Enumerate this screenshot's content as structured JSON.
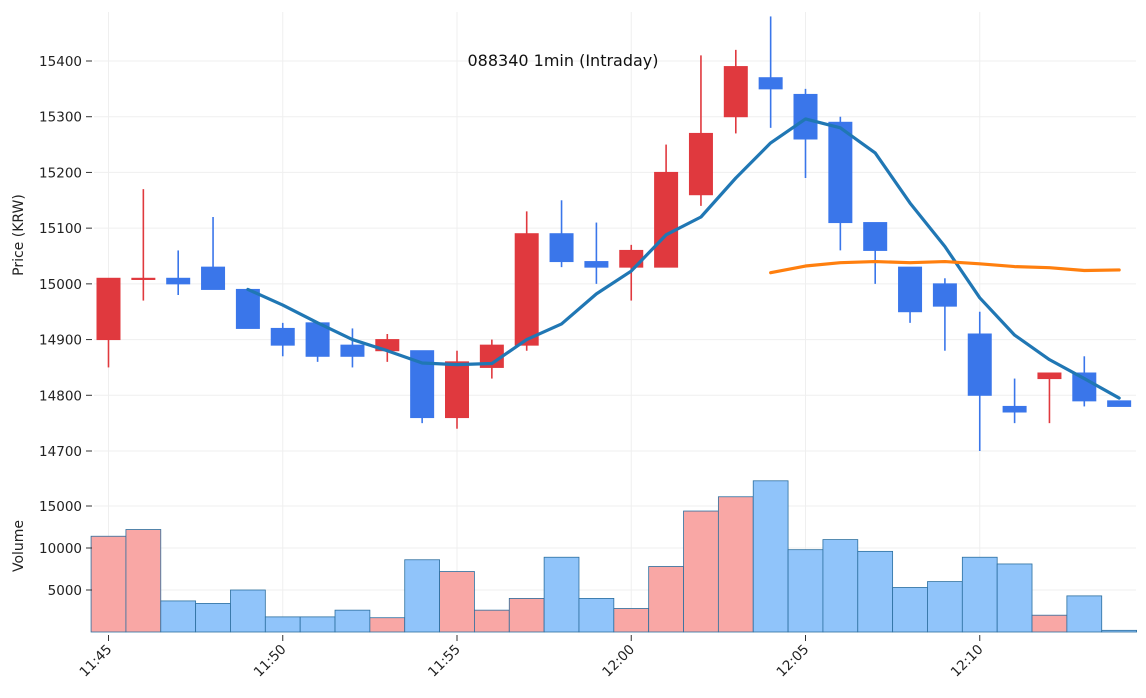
{
  "chart_data": {
    "type": "candlestick",
    "title": "088340 1min (Intraday)",
    "price_axis": {
      "label": "Price (KRW)",
      "ylim": [
        14680,
        15480
      ],
      "ticks": [
        14700,
        14800,
        14900,
        15000,
        15100,
        15200,
        15300,
        15400
      ],
      "tick_labels": [
        "14700",
        "14800",
        "14900",
        "15000",
        "15100",
        "15200",
        "15300",
        "15400"
      ]
    },
    "volume_axis": {
      "label": "Volume",
      "ylim": [
        0,
        18000
      ],
      "ticks": [
        5000,
        10000,
        15000
      ],
      "tick_labels": [
        "5000",
        "10000",
        "15000"
      ]
    },
    "x_axis": {
      "tick_minutes": [
        0,
        5,
        10,
        15,
        20,
        25
      ],
      "tick_labels": [
        "11:45",
        "11:50",
        "11:55",
        "12:00",
        "12:05",
        "12:10"
      ]
    },
    "colors": {
      "up_candle": "#e0393e",
      "down_candle": "#3a76ea",
      "up_volume": "#f9a7a5",
      "down_volume": "#90c4fa",
      "volume_edge": "#2c6f9f",
      "ma_short": "#2077b4",
      "ma_long": "#ff7f0e",
      "grid": "#efefef"
    },
    "candles": [
      {
        "time": "11:45",
        "open": 14900,
        "high": 15010,
        "low": 14850,
        "close": 15010,
        "volume": 11400
      },
      {
        "time": "11:46",
        "open": 15010,
        "high": 15170,
        "low": 14970,
        "close": 15010,
        "volume": 12200
      },
      {
        "time": "11:47",
        "open": 15010,
        "high": 15060,
        "low": 14980,
        "close": 15000,
        "volume": 3700
      },
      {
        "time": "11:48",
        "open": 15030,
        "high": 15120,
        "low": 14990,
        "close": 14990,
        "volume": 3400
      },
      {
        "time": "11:49",
        "open": 14990,
        "high": 14990,
        "low": 14920,
        "close": 14920,
        "volume": 5000
      },
      {
        "time": "11:50",
        "open": 14920,
        "high": 14930,
        "low": 14870,
        "close": 14890,
        "volume": 1800
      },
      {
        "time": "11:51",
        "open": 14930,
        "high": 14930,
        "low": 14860,
        "close": 14870,
        "volume": 1800
      },
      {
        "time": "11:52",
        "open": 14890,
        "high": 14920,
        "low": 14850,
        "close": 14870,
        "volume": 2600
      },
      {
        "time": "11:53",
        "open": 14880,
        "high": 14910,
        "low": 14860,
        "close": 14900,
        "volume": 1700
      },
      {
        "time": "11:54",
        "open": 14880,
        "high": 14880,
        "low": 14750,
        "close": 14760,
        "volume": 8600
      },
      {
        "time": "11:55",
        "open": 14760,
        "high": 14880,
        "low": 14740,
        "close": 14860,
        "volume": 7200
      },
      {
        "time": "11:56",
        "open": 14850,
        "high": 14900,
        "low": 14830,
        "close": 14890,
        "volume": 2600
      },
      {
        "time": "11:57",
        "open": 14890,
        "high": 15130,
        "low": 14880,
        "close": 15090,
        "volume": 4000
      },
      {
        "time": "11:58",
        "open": 15090,
        "high": 15150,
        "low": 15030,
        "close": 15040,
        "volume": 8900
      },
      {
        "time": "11:59",
        "open": 15040,
        "high": 15110,
        "low": 15000,
        "close": 15030,
        "volume": 4000
      },
      {
        "time": "12:00",
        "open": 15030,
        "high": 15070,
        "low": 14970,
        "close": 15060,
        "volume": 2800
      },
      {
        "time": "12:01",
        "open": 15030,
        "high": 15250,
        "low": 15030,
        "close": 15200,
        "volume": 7800
      },
      {
        "time": "12:02",
        "open": 15160,
        "high": 15410,
        "low": 15140,
        "close": 15270,
        "volume": 14400
      },
      {
        "time": "12:03",
        "open": 15300,
        "high": 15420,
        "low": 15270,
        "close": 15390,
        "volume": 16100
      },
      {
        "time": "12:04",
        "open": 15370,
        "high": 15480,
        "low": 15280,
        "close": 15350,
        "volume": 18000
      },
      {
        "time": "12:05",
        "open": 15340,
        "high": 15350,
        "low": 15190,
        "close": 15260,
        "volume": 9800
      },
      {
        "time": "12:06",
        "open": 15290,
        "high": 15300,
        "low": 15060,
        "close": 15110,
        "volume": 11000
      },
      {
        "time": "12:07",
        "open": 15110,
        "high": 15110,
        "low": 15000,
        "close": 15060,
        "volume": 9600
      },
      {
        "time": "12:08",
        "open": 15030,
        "high": 15030,
        "low": 14930,
        "close": 14950,
        "volume": 5300
      },
      {
        "time": "12:09",
        "open": 15000,
        "high": 15010,
        "low": 14880,
        "close": 14960,
        "volume": 6000
      },
      {
        "time": "12:10",
        "open": 14910,
        "high": 14950,
        "low": 14700,
        "close": 14800,
        "volume": 8900
      },
      {
        "time": "12:11",
        "open": 14780,
        "high": 14830,
        "low": 14750,
        "close": 14770,
        "volume": 8100
      },
      {
        "time": "12:12",
        "open": 14830,
        "high": 14840,
        "low": 14750,
        "close": 14840,
        "volume": 2000
      },
      {
        "time": "12:13",
        "open": 14840,
        "high": 14870,
        "low": 14780,
        "close": 14790,
        "volume": 4300
      },
      {
        "time": "12:14",
        "open": 14790,
        "high": 14790,
        "low": 14780,
        "close": 14780,
        "volume": 200
      }
    ],
    "ma_short": {
      "start_index": 4,
      "values": [
        14990,
        14962,
        14930,
        14900,
        14880,
        14858,
        14855,
        14857,
        14900,
        14928,
        14982,
        15023,
        15088,
        15120,
        15190,
        15253,
        15296,
        15280,
        15235,
        15145,
        15067,
        14975,
        14908,
        14864,
        14830,
        14795
      ]
    },
    "ma_long": {
      "start_index": 19,
      "values": [
        15020,
        15032,
        15038,
        15040,
        15038,
        15040,
        15036,
        15031,
        15029,
        15024,
        15025
      ]
    }
  }
}
